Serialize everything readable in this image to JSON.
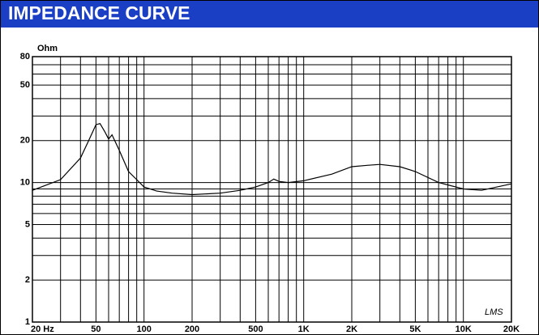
{
  "chart_data": {
    "type": "line",
    "title": "IMPEDANCE CURVE",
    "y_label": "Ohm",
    "annotation": "LMS",
    "xscale": "log",
    "yscale": "log",
    "xlim": [
      20,
      20000
    ],
    "ylim": [
      1,
      80
    ],
    "xticks": [
      {
        "value": 20,
        "label": "20  Hz"
      },
      50,
      100,
      200,
      500,
      {
        "value": 1000,
        "label": "1K"
      },
      {
        "value": 2000,
        "label": "2K"
      },
      {
        "value": 5000,
        "label": "5K"
      },
      {
        "value": 10000,
        "label": "10K"
      },
      {
        "value": 20000,
        "label": "20K"
      }
    ],
    "yticks": [
      1,
      2,
      5,
      10,
      20,
      50,
      80
    ],
    "x_minor_grid": [
      30,
      40,
      60,
      70,
      80,
      90,
      300,
      400,
      600,
      700,
      800,
      900,
      3000,
      4000,
      6000,
      7000,
      8000,
      9000
    ],
    "y_minor_grid": [
      3,
      4,
      6,
      7,
      8,
      9,
      30,
      40,
      60,
      70
    ],
    "grid": true,
    "color": "#000000",
    "title_color": "#1a3fc4",
    "series": [
      {
        "name": "Impedance",
        "x": [
          20,
          30,
          40,
          45,
          50,
          53,
          57,
          60,
          63,
          70,
          80,
          90,
          100,
          120,
          150,
          200,
          300,
          400,
          500,
          600,
          650,
          700,
          800,
          1000,
          1500,
          2000,
          2500,
          3000,
          4000,
          5000,
          7000,
          10000,
          13000,
          20000
        ],
        "values": [
          8.8,
          10.5,
          15,
          20,
          26,
          26.5,
          23,
          20.5,
          22,
          17,
          12,
          10.5,
          9.3,
          8.7,
          8.4,
          8.2,
          8.4,
          8.8,
          9.3,
          10.0,
          10.6,
          10.2,
          10.0,
          10.3,
          11.5,
          13,
          13.3,
          13.5,
          13.0,
          12.0,
          10,
          9.0,
          8.8,
          9.8
        ]
      }
    ]
  }
}
